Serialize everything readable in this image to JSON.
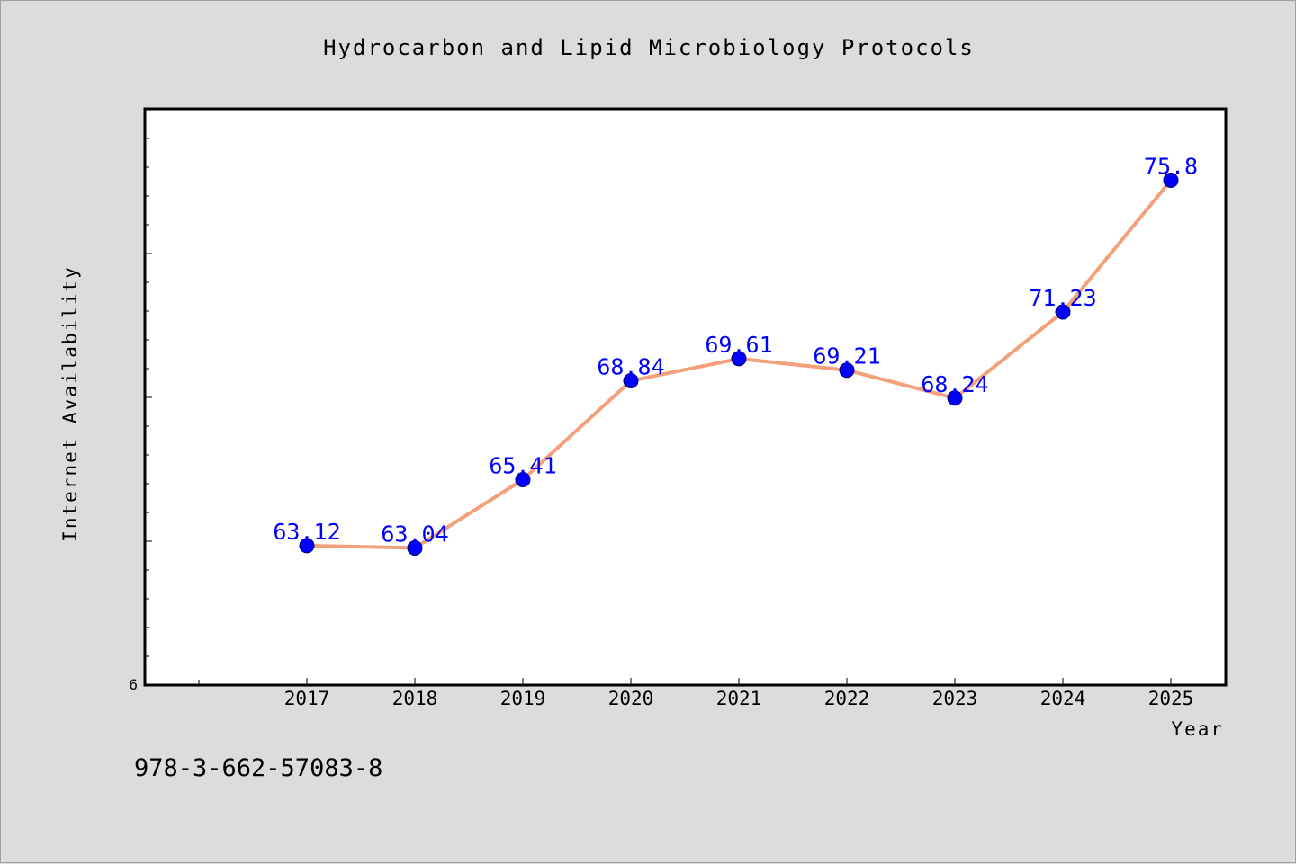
{
  "chart_data": {
    "type": "line",
    "title": "Hydrocarbon and Lipid Microbiology Protocols",
    "xlabel": "Year",
    "ylabel": "Internet Availability",
    "categories": [
      "2017",
      "2018",
      "2019",
      "2020",
      "2021",
      "2022",
      "2023",
      "2024",
      "2025"
    ],
    "values": [
      63.12,
      63.04,
      65.41,
      68.84,
      69.61,
      69.21,
      68.24,
      71.23,
      75.8
    ],
    "data_labels": [
      "63.12",
      "63.04",
      "65.41",
      "68.84",
      "69.61",
      "69.21",
      "68.24",
      "71.23",
      "75.8"
    ],
    "y_min_label": "6",
    "ylim": [
      58.28,
      78.28
    ],
    "grid": false,
    "legend": "none",
    "colors": {
      "line": "#f4a07a",
      "marker": "#0000ff",
      "data_label": "#0000ff",
      "plot_background": "#ffffff",
      "page_background": "#dcdcdc"
    }
  },
  "footer": {
    "isbn": "978-3-662-57083-8"
  }
}
